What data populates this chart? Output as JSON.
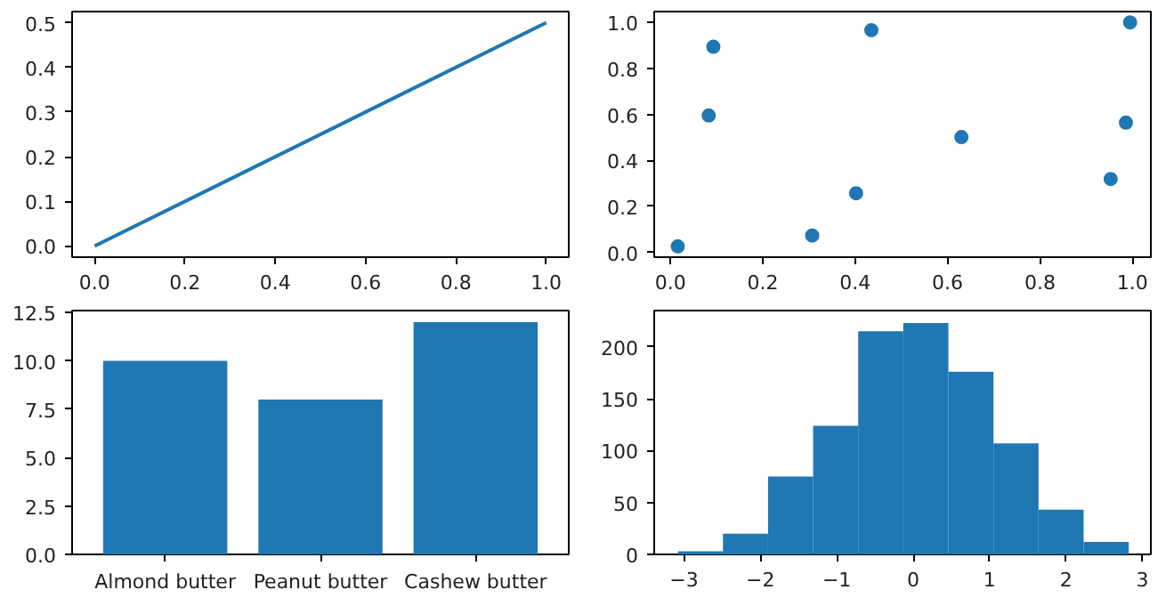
{
  "chart_data": [
    {
      "type": "line",
      "x": [
        0,
        1
      ],
      "series": [
        {
          "color": "#1f77b4",
          "values": [
            0,
            0.5
          ]
        }
      ],
      "xlim": [
        -0.05,
        1.05
      ],
      "ylim": [
        -0.025,
        0.525
      ],
      "xticks": [
        {
          "value": 0,
          "label": "0.0"
        },
        0.2,
        0.4,
        0.6,
        0.8,
        {
          "value": 1,
          "label": "1.0"
        }
      ],
      "yticks": [
        {
          "value": 0,
          "label": "0.0"
        },
        0.1,
        0.2,
        0.3,
        0.4,
        0.5
      ],
      "grid": false,
      "marker": "none",
      "line_style": "solid"
    },
    {
      "type": "scatter",
      "x": [
        0.016,
        0.083,
        0.093,
        0.307,
        0.402,
        0.435,
        0.63,
        0.953,
        0.986,
        0.995
      ],
      "series": [
        {
          "color": "#1f77b4",
          "values": [
            0.026,
            0.595,
            0.894,
            0.073,
            0.257,
            0.966,
            0.501,
            0.319,
            0.564,
            1.0
          ]
        }
      ],
      "xlim": [
        -0.035,
        1.04
      ],
      "ylim": [
        -0.021,
        1.047
      ],
      "xticks": [
        {
          "value": 0,
          "label": "0.0"
        },
        0.2,
        0.4,
        0.6,
        0.8,
        {
          "value": 1,
          "label": "1.0"
        }
      ],
      "yticks": [
        {
          "value": 0,
          "label": "0.0"
        },
        0.2,
        0.4,
        0.6,
        0.8,
        {
          "value": 1,
          "label": "1.0"
        }
      ],
      "grid": false,
      "marker": "circle"
    },
    {
      "type": "bar",
      "categories": [
        "Almond butter",
        "Peanut butter",
        "Cashew butter"
      ],
      "series": [
        {
          "color": "#1f77b4",
          "values": [
            10,
            8,
            12
          ]
        }
      ],
      "ylim": [
        0,
        12.6
      ],
      "yticks": [
        {
          "value": 0,
          "label": "0.0"
        },
        2.5,
        {
          "value": 5,
          "label": "5.0"
        },
        7.5,
        {
          "value": 10,
          "label": "10.0"
        },
        12.5
      ],
      "grid": false
    },
    {
      "type": "histogram",
      "bins": [
        -3.08,
        -2.49,
        -1.9,
        -1.31,
        -0.72,
        -0.13,
        0.46,
        1.05,
        1.64,
        2.23,
        2.82
      ],
      "values": [
        3,
        20,
        75,
        124,
        215,
        223,
        176,
        107,
        43,
        12
      ],
      "color": "#1f77b4",
      "xlim": [
        -3.39,
        3.11
      ],
      "ylim": [
        0,
        235
      ],
      "xticks": [
        {
          "value": -3,
          "label": "−3"
        },
        {
          "value": -2,
          "label": "−2"
        },
        {
          "value": -1,
          "label": "−1"
        },
        0,
        1,
        2,
        3
      ],
      "yticks": [
        0,
        50,
        100,
        150,
        200
      ],
      "grid": false
    }
  ]
}
